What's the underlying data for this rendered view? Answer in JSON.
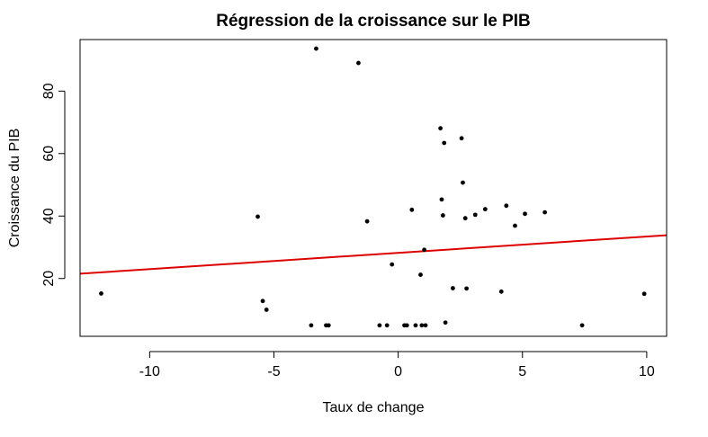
{
  "chart_data": {
    "type": "scatter",
    "title": "Régression de la croissance sur le PIB",
    "xlabel": "Taux de change",
    "ylabel": "Croissance du PIB",
    "xlim": [
      -12.8,
      10.8
    ],
    "ylim": [
      1.5,
      96.5
    ],
    "x_ticks": [
      -10,
      -5,
      0,
      5,
      10
    ],
    "y_ticks": [
      20,
      40,
      60,
      80
    ],
    "grid": false,
    "point_color": "#000000",
    "points": [
      {
        "x": -11.95,
        "y": 15.2
      },
      {
        "x": -5.65,
        "y": 39.8
      },
      {
        "x": -5.45,
        "y": 12.8
      },
      {
        "x": -5.3,
        "y": 10.0
      },
      {
        "x": -3.5,
        "y": 5.0
      },
      {
        "x": -3.3,
        "y": 93.6
      },
      {
        "x": -2.9,
        "y": 5.0
      },
      {
        "x": -2.8,
        "y": 5.0
      },
      {
        "x": -1.6,
        "y": 89.0
      },
      {
        "x": -1.25,
        "y": 38.3
      },
      {
        "x": -0.75,
        "y": 5.0
      },
      {
        "x": -0.45,
        "y": 5.0
      },
      {
        "x": -0.25,
        "y": 24.5
      },
      {
        "x": 0.25,
        "y": 5.0
      },
      {
        "x": 0.35,
        "y": 5.0
      },
      {
        "x": 0.55,
        "y": 42.0
      },
      {
        "x": 0.7,
        "y": 5.0
      },
      {
        "x": 0.9,
        "y": 21.2
      },
      {
        "x": 0.95,
        "y": 5.0
      },
      {
        "x": 1.05,
        "y": 29.2
      },
      {
        "x": 1.1,
        "y": 5.0
      },
      {
        "x": 1.7,
        "y": 68.1
      },
      {
        "x": 1.75,
        "y": 45.3
      },
      {
        "x": 1.8,
        "y": 40.2
      },
      {
        "x": 1.85,
        "y": 63.4
      },
      {
        "x": 1.9,
        "y": 5.9
      },
      {
        "x": 2.2,
        "y": 16.9
      },
      {
        "x": 2.55,
        "y": 64.9
      },
      {
        "x": 2.6,
        "y": 50.7
      },
      {
        "x": 2.7,
        "y": 39.3
      },
      {
        "x": 2.75,
        "y": 16.8
      },
      {
        "x": 3.1,
        "y": 40.4
      },
      {
        "x": 3.5,
        "y": 42.2
      },
      {
        "x": 4.15,
        "y": 15.8
      },
      {
        "x": 4.35,
        "y": 43.3
      },
      {
        "x": 4.7,
        "y": 36.9
      },
      {
        "x": 5.1,
        "y": 40.7
      },
      {
        "x": 5.9,
        "y": 41.2
      },
      {
        "x": 7.4,
        "y": 5.0
      },
      {
        "x": 9.9,
        "y": 15.1
      }
    ],
    "regression_line": {
      "color": "#dd0000",
      "intercept": 28.22,
      "slope": 0.5221
    }
  }
}
